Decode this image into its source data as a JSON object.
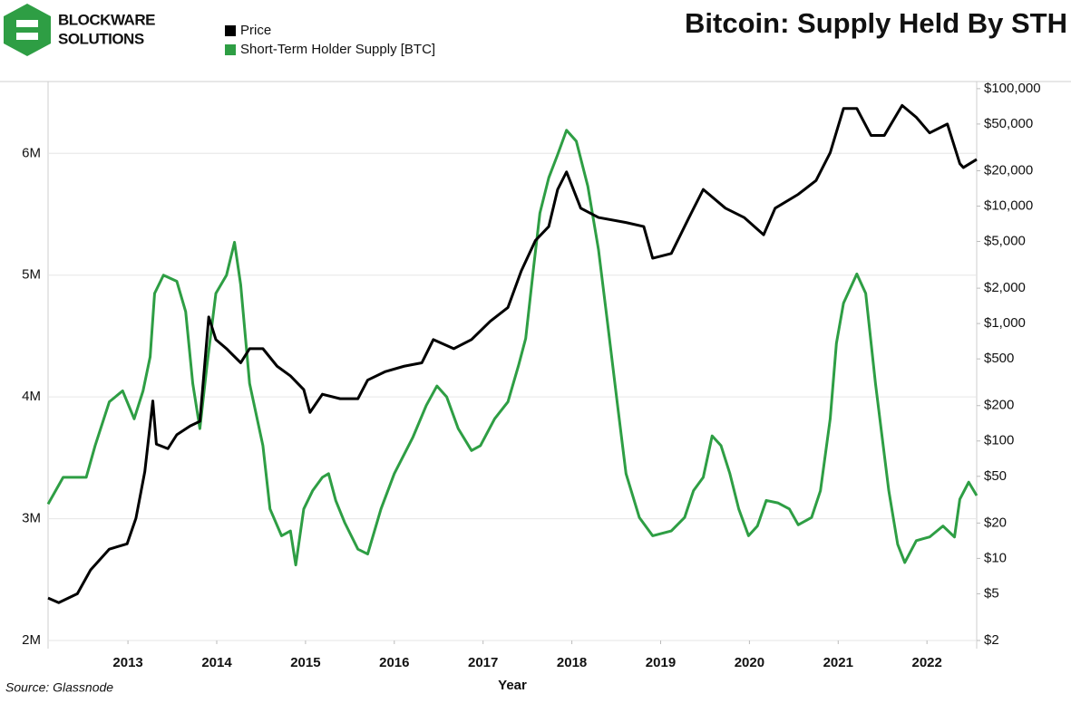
{
  "chart_data": {
    "type": "line",
    "title": "Bitcoin: Supply Held By STH",
    "logo_lines": [
      "BLOCKWARE",
      "SOLUTIONS"
    ],
    "source": "Source: Glassnode",
    "x_label": "Year",
    "xlim": [
      2012.1,
      2022.56
    ],
    "xticks": [
      2013,
      2014,
      2015,
      2016,
      2017,
      2018,
      2019,
      2020,
      2021,
      2022
    ],
    "ylim": [
      2000000,
      6590000
    ],
    "yticks": [
      {
        "value": 2000000,
        "label": "2M"
      },
      {
        "value": 3000000,
        "label": "3M"
      },
      {
        "value": 4000000,
        "label": "4M"
      },
      {
        "value": 5000000,
        "label": "5M"
      },
      {
        "value": 6000000,
        "label": "6M"
      }
    ],
    "y2lim": [
      2,
      115000
    ],
    "y2_log": true,
    "y2ticks": [
      {
        "value": 2,
        "label": "$2"
      },
      {
        "value": 5,
        "label": "$5"
      },
      {
        "value": 10,
        "label": "$10"
      },
      {
        "value": 20,
        "label": "$20"
      },
      {
        "value": 50,
        "label": "$50"
      },
      {
        "value": 100,
        "label": "$100"
      },
      {
        "value": 200,
        "label": "$200"
      },
      {
        "value": 500,
        "label": "$500"
      },
      {
        "value": 1000,
        "label": "$1,000"
      },
      {
        "value": 2000,
        "label": "$2,000"
      },
      {
        "value": 5000,
        "label": "$5,000"
      },
      {
        "value": 10000,
        "label": "$10,000"
      },
      {
        "value": 20000,
        "label": "$20,000"
      },
      {
        "value": 50000,
        "label": "$50,000"
      },
      {
        "value": 100000,
        "label": "$100,000"
      }
    ],
    "grid": true,
    "series": [
      {
        "name": "Price",
        "color": "#000000",
        "axis": "y2",
        "x": [
          2012.1,
          2012.22,
          2012.43,
          2012.58,
          2012.79,
          2012.99,
          2013.09,
          2013.19,
          2013.28,
          2013.32,
          2013.45,
          2013.55,
          2013.7,
          2013.81,
          2013.91,
          2013.99,
          2014.11,
          2014.27,
          2014.37,
          2014.52,
          2014.68,
          2014.83,
          2014.98,
          2015.05,
          2015.19,
          2015.39,
          2015.59,
          2015.7,
          2015.9,
          2016.11,
          2016.31,
          2016.44,
          2016.67,
          2016.87,
          2017.08,
          2017.28,
          2017.43,
          2017.59,
          2017.74,
          2017.84,
          2017.94,
          2018.1,
          2018.3,
          2018.61,
          2018.81,
          2018.91,
          2019.12,
          2019.32,
          2019.48,
          2019.73,
          2019.94,
          2020.16,
          2020.29,
          2020.55,
          2020.75,
          2020.91,
          2021.06,
          2021.21,
          2021.37,
          2021.52,
          2021.72,
          2021.88,
          2022.03,
          2022.23,
          2022.37,
          2022.41,
          2022.56
        ],
        "values": [
          4.6,
          4.2,
          5,
          8,
          12,
          13.3,
          22,
          55,
          219,
          94,
          86,
          113,
          134,
          147,
          1138,
          730,
          611,
          463,
          611,
          611,
          433,
          358,
          274,
          175,
          250,
          229,
          229,
          330,
          390,
          433,
          463,
          730,
          611,
          730,
          1045,
          1370,
          2800,
          5100,
          6700,
          13860,
          19550,
          9600,
          8000,
          7250,
          6700,
          3600,
          3950,
          8000,
          13860,
          9600,
          8000,
          5700,
          9600,
          12600,
          16500,
          28500,
          67800,
          67800,
          40000,
          40000,
          72000,
          57000,
          42000,
          50000,
          23000,
          21300,
          25000
        ]
      },
      {
        "name": "Short-Term Holder Supply [BTC]",
        "color": "#2e9e44",
        "axis": "y",
        "x": [
          2012.1,
          2012.27,
          2012.53,
          2012.63,
          2012.79,
          2012.94,
          2013.07,
          2013.17,
          2013.25,
          2013.3,
          2013.4,
          2013.55,
          2013.65,
          2013.73,
          2013.81,
          2013.89,
          2013.99,
          2014.11,
          2014.2,
          2014.27,
          2014.37,
          2014.52,
          2014.6,
          2014.73,
          2014.83,
          2014.89,
          2014.98,
          2015.08,
          2015.19,
          2015.26,
          2015.34,
          2015.44,
          2015.59,
          2015.7,
          2015.85,
          2016.0,
          2016.21,
          2016.36,
          2016.48,
          2016.59,
          2016.72,
          2016.87,
          2016.97,
          2017.13,
          2017.28,
          2017.4,
          2017.48,
          2017.57,
          2017.64,
          2017.74,
          2017.84,
          2017.94,
          2018.05,
          2018.18,
          2018.3,
          2018.4,
          2018.51,
          2018.61,
          2018.76,
          2018.91,
          2019.12,
          2019.27,
          2019.37,
          2019.48,
          2019.58,
          2019.68,
          2019.78,
          2019.88,
          2019.99,
          2020.09,
          2020.19,
          2020.32,
          2020.45,
          2020.55,
          2020.7,
          2020.8,
          2020.91,
          2020.98,
          2021.06,
          2021.21,
          2021.31,
          2021.42,
          2021.57,
          2021.67,
          2021.75,
          2021.88,
          2022.03,
          2022.18,
          2022.31,
          2022.37,
          2022.47,
          2022.56
        ],
        "values": [
          3120000,
          3340000,
          3340000,
          3600000,
          3960000,
          4050000,
          3820000,
          4050000,
          4330000,
          4850000,
          5000000,
          4950000,
          4700000,
          4110000,
          3740000,
          4260000,
          4850000,
          5000000,
          5270000,
          4920000,
          4110000,
          3600000,
          3080000,
          2860000,
          2900000,
          2620000,
          3080000,
          3230000,
          3340000,
          3370000,
          3150000,
          2970000,
          2750000,
          2710000,
          3080000,
          3370000,
          3670000,
          3930000,
          4090000,
          4000000,
          3740000,
          3560000,
          3600000,
          3820000,
          3960000,
          4260000,
          4480000,
          5070000,
          5510000,
          5800000,
          5990000,
          6190000,
          6100000,
          5730000,
          5210000,
          4620000,
          3960000,
          3370000,
          3010000,
          2860000,
          2900000,
          3010000,
          3230000,
          3340000,
          3680000,
          3600000,
          3370000,
          3080000,
          2860000,
          2940000,
          3150000,
          3130000,
          3080000,
          2950000,
          3010000,
          3230000,
          3820000,
          4440000,
          4770000,
          5010000,
          4850000,
          4110000,
          3230000,
          2790000,
          2640000,
          2820000,
          2850000,
          2940000,
          2850000,
          3160000,
          3300000,
          3190000
        ]
      }
    ]
  }
}
